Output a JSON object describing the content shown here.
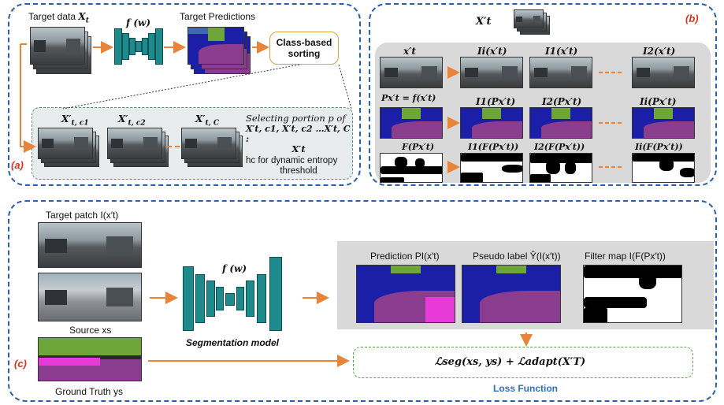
{
  "panel_a": {
    "letter": "(a)",
    "target_data_label": "Target data ",
    "target_data_math": "X",
    "target_data_sub": "t",
    "fw_label": "f (w)",
    "target_predictions_label": "Target Predictions",
    "class_sorting_label": "Class-based sorting",
    "group1": "X′",
    "group1_sub": "t, c1",
    "group2": "X′",
    "group2_sub": "t, c2",
    "group3": "X′",
    "group3_sub": "t, C",
    "selecting_line1": "Selecting portion p of",
    "selecting_line2": "X′t, c1, X′t, c2 …X′t, C :",
    "selecting_line3": "X′t",
    "hc_line1": "hc for dynamic entropy",
    "hc_line2": "threshold"
  },
  "panel_b": {
    "letter": "(b)",
    "top_label": "X′t",
    "row1": [
      "x′t",
      "Ii(x′t)",
      "I1(x′t)",
      "I2(x′t)"
    ],
    "row2": [
      "Px′t = f(x′t)",
      "I1(Px′t)",
      "I2(Px′t)",
      "Ii(Px′t)"
    ],
    "row3": [
      "F(Px′t)",
      "I1(F(Px′t))",
      "I2(F(Px′t))",
      "Ii(F(Px′t))"
    ]
  },
  "panel_c": {
    "letter": "(c)",
    "target_patch_label": "Target patch I(x′t)",
    "source_label": "Source xs",
    "ground_truth_label": "Ground Truth  ys",
    "fw_label": "f (w)",
    "segmentation_model_label": "Segmentation model",
    "prediction_label": "Prediction PI(x′t)",
    "pseudo_label": "Pseudo label Ŷ(I(x′t))",
    "filter_map_label": "Filter map I(F(Px′t))",
    "loss_formula": "ℒseg(xs, ys)  + ℒadapt(X′T)",
    "loss_function_label": "Loss Function"
  },
  "colors": {
    "panel_border": "#2d5ea8",
    "arrow": "#e8833a",
    "letter": "#e0301e",
    "loss_function": "#2f6fc2",
    "road": "#8a3d8e",
    "vegetation": "#6ea63a",
    "car": "#1b1fa8",
    "sidewalk": "#e83ad8"
  }
}
